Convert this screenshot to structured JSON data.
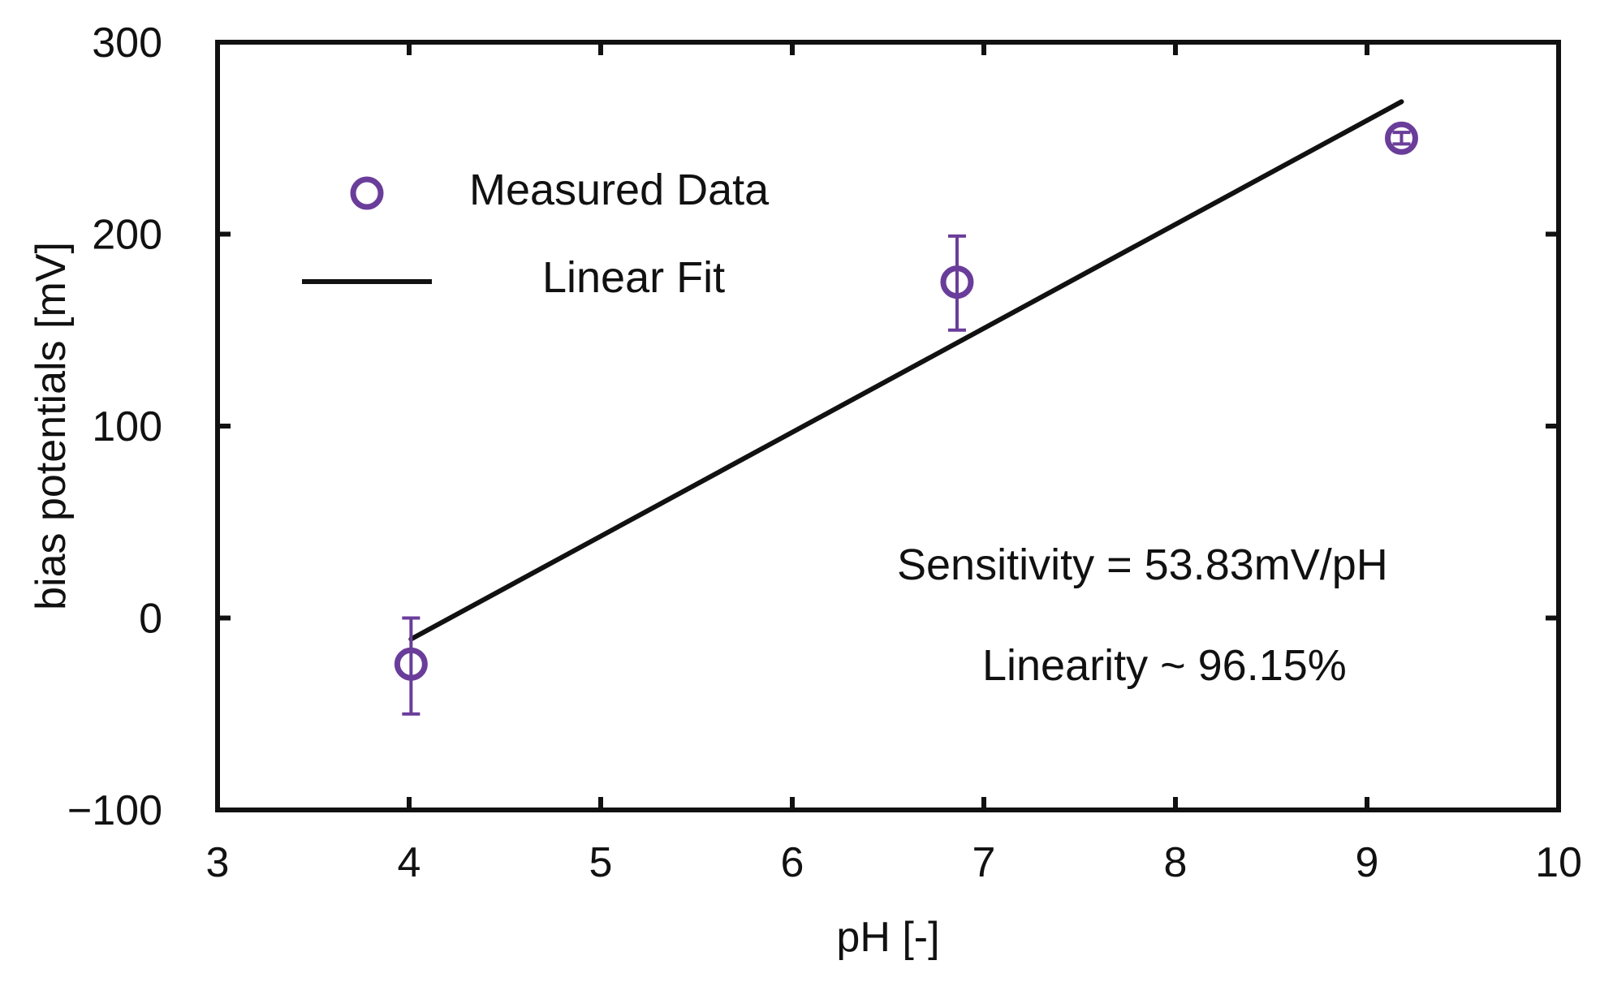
{
  "chart_data": {
    "type": "scatter",
    "title": "",
    "xlabel": "pH [-]",
    "ylabel": "bias potentials [mV]",
    "xlim": [
      3,
      10
    ],
    "ylim": [
      -100,
      300
    ],
    "xticks": [
      3,
      4,
      5,
      6,
      7,
      8,
      9,
      10
    ],
    "yticks": [
      -100,
      0,
      100,
      200,
      300
    ],
    "xtick_labels": [
      "3",
      "4",
      "5",
      "6",
      "7",
      "8",
      "9",
      "10"
    ],
    "ytick_labels": [
      "−100",
      "0",
      "100",
      "200",
      "300"
    ],
    "grid": false,
    "legend_position": "top-left",
    "series": [
      {
        "name": "Measured Data",
        "kind": "scatter",
        "marker": "open-circle",
        "color": "#6a3d9a",
        "x": [
          4.01,
          6.86,
          9.18
        ],
        "y": [
          -24,
          175,
          250
        ],
        "error_low": [
          -50,
          150,
          247
        ],
        "error_high": [
          0,
          199,
          253
        ]
      },
      {
        "name": "Linear Fit",
        "kind": "line",
        "color": "#111111",
        "x": [
          4.01,
          9.18
        ],
        "y": [
          -11,
          269
        ]
      }
    ],
    "annotations": [
      "Sensitivity = 53.83mV/pH",
      "Linearity ~ 96.15%"
    ]
  }
}
